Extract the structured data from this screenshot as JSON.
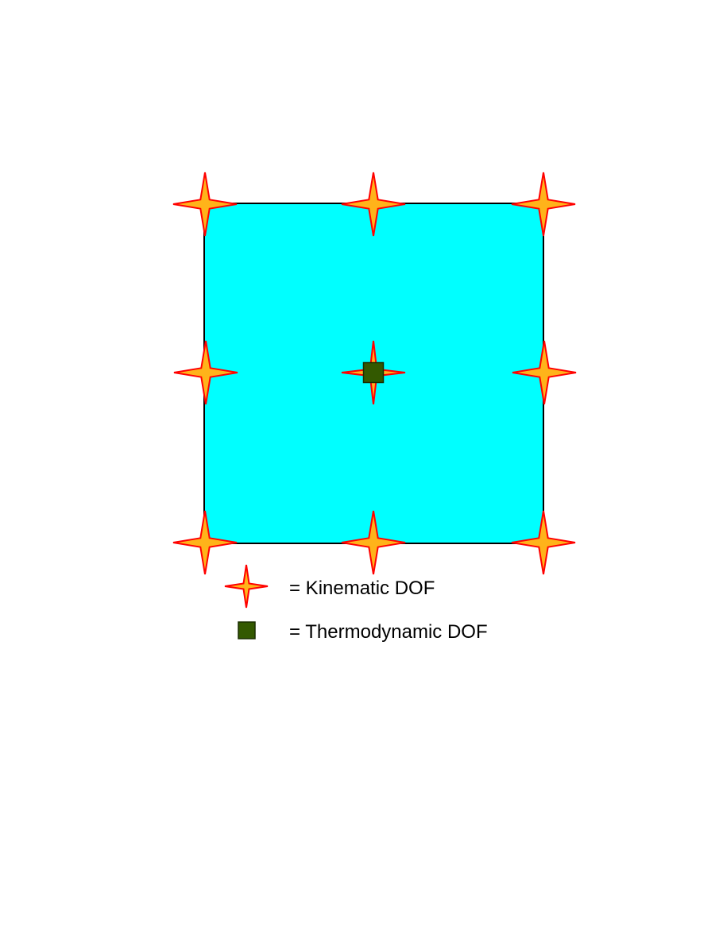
{
  "diagram": {
    "element_fill": "#00FFFF",
    "element_stroke": "#000000",
    "kinematic_nodes": [
      {
        "id": "corner-top-left"
      },
      {
        "id": "edge-top-mid"
      },
      {
        "id": "corner-top-right"
      },
      {
        "id": "edge-left-mid"
      },
      {
        "id": "center"
      },
      {
        "id": "edge-right-mid"
      },
      {
        "id": "corner-bottom-left"
      },
      {
        "id": "edge-bottom-mid"
      },
      {
        "id": "corner-bottom-right"
      }
    ],
    "thermodynamic_nodes": [
      {
        "id": "center"
      }
    ],
    "star_fill": "#FFB31A",
    "star_stroke": "#FF0000",
    "square_fill": "#335900",
    "square_stroke": "#1A2E00"
  },
  "legend": {
    "kinematic_label": "= Kinematic DOF",
    "thermodynamic_label": "= Thermodynamic DOF"
  }
}
